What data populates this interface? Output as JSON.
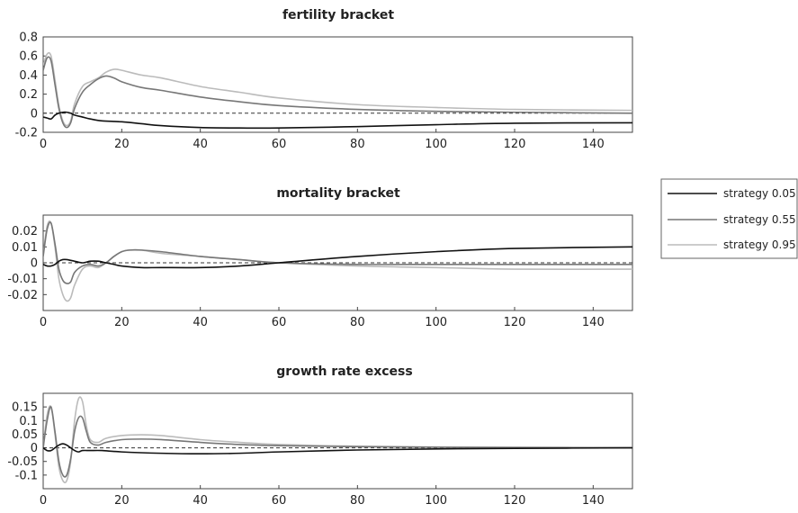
{
  "legend": [
    {
      "name": "strategy 0.05",
      "color": "#111111"
    },
    {
      "name": "strategy 0.55",
      "color": "#777777"
    },
    {
      "name": "strategy 0.95",
      "color": "#bbbbbb"
    }
  ],
  "chart_data": [
    {
      "type": "line",
      "title": "fertility bracket",
      "xlim": [
        0,
        150
      ],
      "ylim": [
        -0.2,
        0.8
      ],
      "xticks": [
        0,
        20,
        40,
        60,
        80,
        100,
        120,
        140
      ],
      "yticks": [
        -0.2,
        0,
        0.2,
        0.4,
        0.6,
        0.8
      ],
      "ytick_labels": [
        "-0.2",
        "0",
        "0.2",
        "0.4",
        "0.6",
        "0.8"
      ],
      "reference_line": 0,
      "series": [
        {
          "name": "strategy 0.05",
          "color": "#111111",
          "x": [
            0,
            1,
            2,
            3,
            4,
            5,
            6,
            7,
            8,
            10,
            12,
            15,
            20,
            25,
            30,
            40,
            50,
            60,
            80,
            100,
            120,
            150
          ],
          "y": [
            -0.04,
            -0.05,
            -0.06,
            -0.02,
            0.0,
            0.01,
            0.01,
            0.0,
            -0.02,
            -0.04,
            -0.06,
            -0.08,
            -0.09,
            -0.11,
            -0.13,
            -0.15,
            -0.155,
            -0.155,
            -0.14,
            -0.12,
            -0.105,
            -0.1
          ]
        },
        {
          "name": "strategy 0.55",
          "color": "#777777",
          "x": [
            0,
            1,
            2,
            3,
            4,
            5,
            6,
            7,
            8,
            10,
            12,
            14,
            16,
            18,
            20,
            25,
            30,
            40,
            50,
            60,
            80,
            100,
            120,
            150
          ],
          "y": [
            0.45,
            0.58,
            0.55,
            0.3,
            0.05,
            -0.1,
            -0.15,
            -0.1,
            0.05,
            0.22,
            0.3,
            0.36,
            0.39,
            0.37,
            0.33,
            0.27,
            0.24,
            0.17,
            0.12,
            0.08,
            0.04,
            0.02,
            0.01,
            0.0
          ]
        },
        {
          "name": "strategy 0.95",
          "color": "#bbbbbb",
          "x": [
            0,
            1,
            2,
            3,
            4,
            5,
            6,
            7,
            8,
            10,
            12,
            14,
            16,
            18,
            20,
            25,
            30,
            40,
            50,
            60,
            80,
            100,
            120,
            150
          ],
          "y": [
            0.5,
            0.62,
            0.6,
            0.35,
            0.08,
            -0.08,
            -0.13,
            -0.08,
            0.1,
            0.28,
            0.33,
            0.37,
            0.43,
            0.46,
            0.45,
            0.4,
            0.37,
            0.28,
            0.22,
            0.16,
            0.09,
            0.06,
            0.04,
            0.03
          ]
        }
      ]
    },
    {
      "type": "line",
      "title": "mortality bracket",
      "xlim": [
        0,
        150
      ],
      "ylim": [
        -0.03,
        0.03
      ],
      "xticks": [
        0,
        20,
        40,
        60,
        80,
        100,
        120,
        140
      ],
      "yticks": [
        -0.02,
        -0.01,
        0,
        0.01,
        0.02
      ],
      "ytick_labels": [
        "-0.02",
        "-0.01",
        "0",
        "0.01",
        "0.02"
      ],
      "reference_line": 0,
      "series": [
        {
          "name": "strategy 0.05",
          "color": "#111111",
          "x": [
            0,
            1,
            2,
            3,
            4,
            5,
            6,
            8,
            10,
            12,
            14,
            16,
            18,
            20,
            25,
            30,
            40,
            50,
            60,
            80,
            100,
            120,
            150
          ],
          "y": [
            -0.001,
            -0.002,
            -0.002,
            -0.001,
            0.001,
            0.002,
            0.002,
            0.001,
            0.0,
            0.001,
            0.001,
            0.0,
            -0.001,
            -0.002,
            -0.003,
            -0.003,
            -0.003,
            -0.002,
            0.0,
            0.004,
            0.007,
            0.009,
            0.01
          ]
        },
        {
          "name": "strategy 0.55",
          "color": "#777777",
          "x": [
            0,
            1,
            2,
            3,
            4,
            5,
            6,
            7,
            8,
            10,
            12,
            14,
            16,
            18,
            20,
            22,
            25,
            30,
            40,
            50,
            60,
            80,
            100,
            120,
            150
          ],
          "y": [
            0.004,
            0.021,
            0.025,
            0.012,
            -0.004,
            -0.011,
            -0.013,
            -0.012,
            -0.006,
            -0.002,
            -0.001,
            -0.002,
            0.0,
            0.004,
            0.007,
            0.008,
            0.008,
            0.007,
            0.004,
            0.002,
            0.0,
            -0.001,
            -0.001,
            -0.001,
            -0.001
          ]
        },
        {
          "name": "strategy 0.95",
          "color": "#bbbbbb",
          "x": [
            0,
            1,
            2,
            3,
            4,
            5,
            6,
            7,
            8,
            10,
            12,
            14,
            16,
            18,
            20,
            22,
            25,
            30,
            40,
            50,
            60,
            80,
            100,
            120,
            150
          ],
          "y": [
            0.005,
            0.023,
            0.025,
            0.01,
            -0.01,
            -0.02,
            -0.024,
            -0.022,
            -0.014,
            -0.004,
            -0.002,
            -0.003,
            0.0,
            0.004,
            0.007,
            0.008,
            0.008,
            0.006,
            0.004,
            0.002,
            0.0,
            -0.002,
            -0.003,
            -0.004,
            -0.004
          ]
        }
      ]
    },
    {
      "type": "line",
      "title": "growth rate excess",
      "xlim": [
        0,
        150
      ],
      "ylim": [
        -0.15,
        0.2
      ],
      "xticks": [
        0,
        20,
        40,
        60,
        80,
        100,
        120,
        140
      ],
      "yticks": [
        -0.1,
        -0.05,
        0,
        0.05,
        0.1,
        0.15
      ],
      "ytick_labels": [
        "-0.1",
        "-0.05",
        "0",
        "0.05",
        "0.1",
        "0.15"
      ],
      "reference_line": 0,
      "series": [
        {
          "name": "strategy 0.05",
          "color": "#111111",
          "x": [
            0,
            1,
            2,
            3,
            4,
            5,
            6,
            7,
            8,
            9,
            10,
            12,
            15,
            20,
            30,
            40,
            50,
            60,
            80,
            100,
            120,
            150
          ],
          "y": [
            0.0,
            -0.01,
            -0.01,
            0.0,
            0.01,
            0.015,
            0.01,
            0.0,
            -0.01,
            -0.015,
            -0.01,
            -0.01,
            -0.01,
            -0.015,
            -0.02,
            -0.022,
            -0.02,
            -0.015,
            -0.008,
            -0.004,
            -0.002,
            0.0
          ]
        },
        {
          "name": "strategy 0.55",
          "color": "#777777",
          "x": [
            0,
            1,
            2,
            3,
            4,
            5,
            6,
            7,
            8,
            9,
            10,
            11,
            12,
            14,
            16,
            20,
            25,
            30,
            40,
            50,
            60,
            80,
            100,
            120,
            150
          ],
          "y": [
            0.0,
            0.1,
            0.15,
            0.06,
            -0.05,
            -0.1,
            -0.1,
            -0.04,
            0.06,
            0.11,
            0.11,
            0.06,
            0.02,
            0.01,
            0.02,
            0.03,
            0.032,
            0.03,
            0.02,
            0.012,
            0.008,
            0.004,
            0.002,
            0.001,
            0.0
          ]
        },
        {
          "name": "strategy 0.95",
          "color": "#bbbbbb",
          "x": [
            0,
            1,
            2,
            3,
            4,
            5,
            6,
            7,
            8,
            9,
            10,
            11,
            12,
            14,
            16,
            20,
            25,
            30,
            40,
            50,
            60,
            80,
            100,
            120,
            150
          ],
          "y": [
            0.0,
            0.12,
            0.15,
            0.05,
            -0.07,
            -0.12,
            -0.12,
            -0.05,
            0.1,
            0.18,
            0.17,
            0.08,
            0.03,
            0.02,
            0.035,
            0.045,
            0.048,
            0.045,
            0.03,
            0.02,
            0.012,
            0.006,
            0.003,
            0.002,
            0.001
          ]
        }
      ]
    }
  ]
}
